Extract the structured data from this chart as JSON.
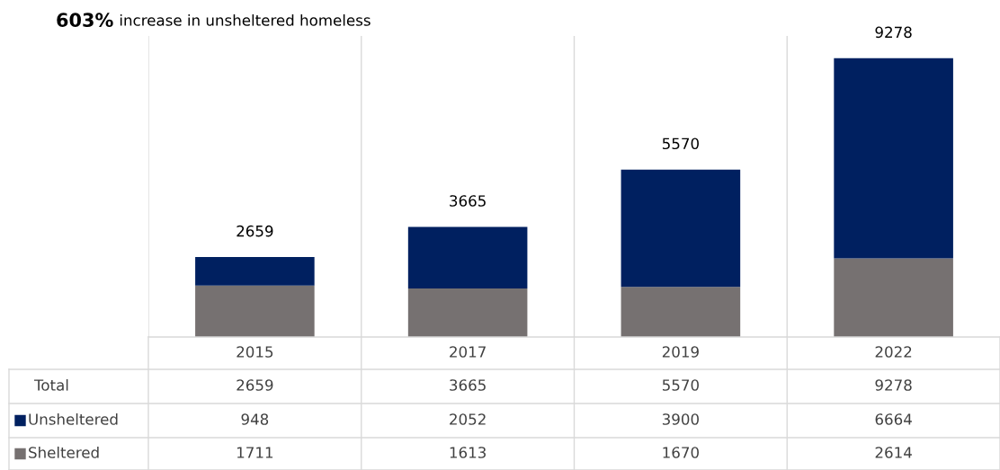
{
  "chart_data": {
    "type": "bar",
    "title": "603% increase in unsheltered homeless",
    "categories": [
      "2015",
      "2017",
      "2019",
      "2022"
    ],
    "stacked": true,
    "series": [
      {
        "name": "Sheltered",
        "color": "#767171",
        "values": [
          1711,
          1613,
          1670,
          2614
        ]
      },
      {
        "name": "Unsheltered",
        "color": "#002060",
        "values": [
          948,
          2052,
          3900,
          6664
        ]
      }
    ],
    "totals": [
      "2659",
      "3665",
      "5570",
      "9278"
    ],
    "data_labels": true,
    "legend": "bottom left",
    "annotations": [
      "Total"
    ]
  }
}
